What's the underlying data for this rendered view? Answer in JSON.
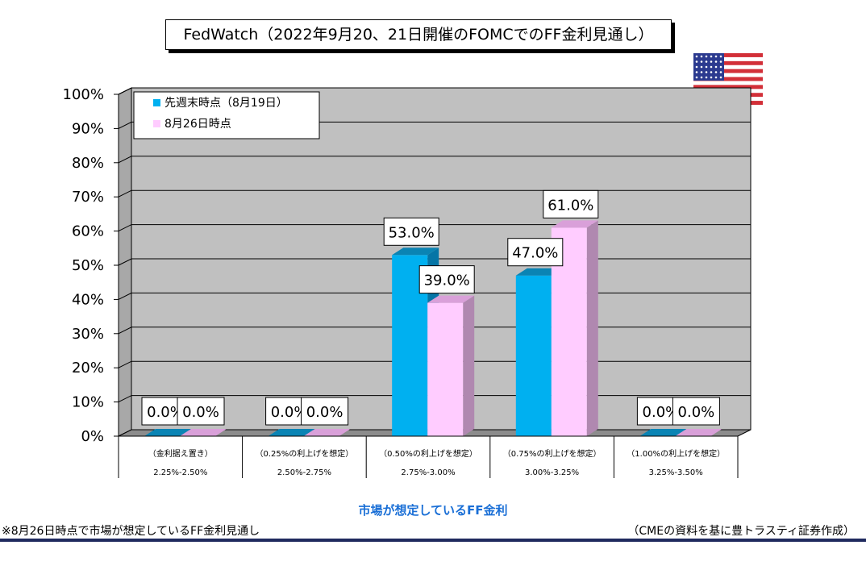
{
  "chart_data": {
    "type": "bar",
    "title": "FedWatch（2022年9月20、21日開催のFOMCでのFF金利見通し）",
    "xlabel": "市場が想定しているFF金利",
    "ylabel": "",
    "ylim": [
      0,
      100
    ],
    "yticks": [
      "0%",
      "10%",
      "20%",
      "30%",
      "40%",
      "50%",
      "60%",
      "70%",
      "80%",
      "90%",
      "100%"
    ],
    "categories": [
      {
        "line1": "（金利据え置き）",
        "line2": "2.25%-2.50%"
      },
      {
        "line1": "（0.25%の利上げを想定）",
        "line2": "2.50%-2.75%"
      },
      {
        "line1": "（0.50%の利上げを想定）",
        "line2": "2.75%-3.00%"
      },
      {
        "line1": "（0.75%の利上げを想定）",
        "line2": "3.00%-3.25%"
      },
      {
        "line1": "（1.00%の利上げを想定）",
        "line2": "3.25%-3.50%"
      }
    ],
    "series": [
      {
        "name": "先週末時点（8月19日）",
        "values": [
          0,
          0,
          53,
          47,
          0
        ],
        "labels": [
          "0.0%",
          "0.0%",
          "53.0%",
          "47.0%",
          "0.0%"
        ],
        "color": "#00b0f0",
        "top": "#0a84b4",
        "side": "#0575a6"
      },
      {
        "name": "8月26日時点",
        "values": [
          0,
          0,
          39,
          61,
          0
        ],
        "labels": [
          "0.0%",
          "0.0%",
          "39.0%",
          "61.0%",
          "0.0%"
        ],
        "color": "#ffccff",
        "top": "#d9a0d9",
        "side": "#b088b0"
      }
    ],
    "grid": true,
    "legend": "top-left"
  },
  "notes": {
    "left": "※8月26日時点で市場が想定しているFF金利見通し",
    "right": "（CMEの資料を基に豊トラスティ証券作成）"
  },
  "flag_icon": "us-flag-icon",
  "colors": {
    "plot_bg": "#c0c0c0",
    "axis_title": "#1a6fd6",
    "rule": "#1f2a5e"
  }
}
